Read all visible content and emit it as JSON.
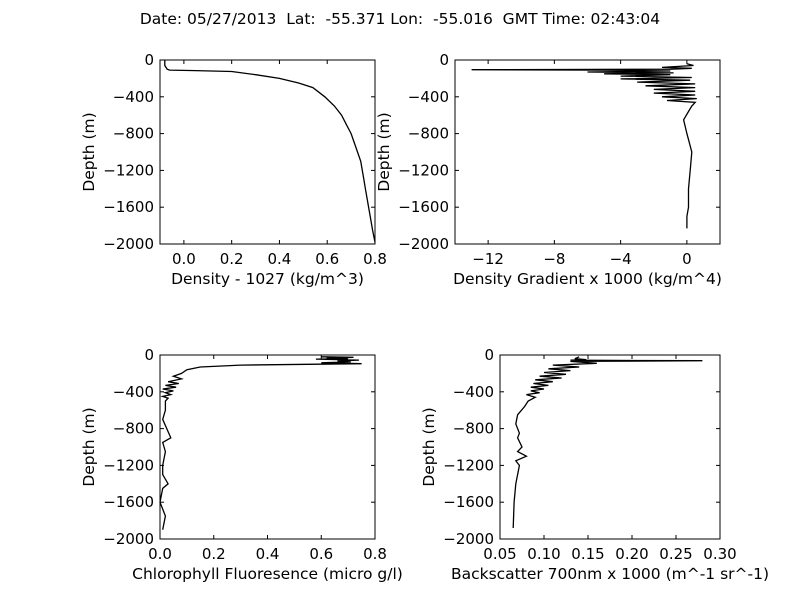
{
  "suptitle": "Date: 05/27/2013  Lat:  -55.371 Lon:  -55.016  GMT Time: 02:43:04",
  "chart_data": [
    {
      "type": "line",
      "xlabel": "Density - 1027 (kg/m^3)",
      "ylabel": "Depth (m)",
      "xlim": [
        -0.1,
        0.8
      ],
      "ylim": [
        -2000,
        0
      ],
      "xticks": [
        0.0,
        0.2,
        0.4,
        0.6,
        0.8
      ],
      "xtick_labels": [
        "0.0",
        "0.2",
        "0.4",
        "0.6",
        "0.8"
      ],
      "yticks": [
        0,
        -400,
        -800,
        -1200,
        -1600,
        -2000
      ],
      "ytick_labels": [
        "0",
        "−400",
        "−800",
        "−1200",
        "−1600",
        "−2000"
      ],
      "grid": false,
      "series": [
        {
          "x": [
            -0.08,
            -0.08,
            -0.07,
            -0.06,
            0.05,
            0.2,
            0.3,
            0.4,
            0.48,
            0.54,
            0.59,
            0.63,
            0.66,
            0.68,
            0.7,
            0.72,
            0.74,
            0.75,
            0.76,
            0.77,
            0.78,
            0.79,
            0.8
          ],
          "y": [
            0,
            -60,
            -100,
            -110,
            -115,
            -125,
            -160,
            -200,
            -250,
            -300,
            -400,
            -500,
            -600,
            -700,
            -800,
            -950,
            -1100,
            -1250,
            -1400,
            -1550,
            -1700,
            -1850,
            -1980
          ]
        }
      ]
    },
    {
      "type": "line",
      "xlabel": "Density Gradient x 1000 (kg/m^4)",
      "ylabel": "Depth (m)",
      "xlim": [
        -14,
        2
      ],
      "ylim": [
        -2000,
        0
      ],
      "xticks": [
        -12,
        -8,
        -4,
        0
      ],
      "xtick_labels": [
        "−12",
        "−8",
        "−4",
        "0"
      ],
      "yticks": [
        0,
        -400,
        -800,
        -1200,
        -1600,
        -2000
      ],
      "ytick_labels": [
        "0",
        "−400",
        "−800",
        "−1200",
        "−1600",
        "−2000"
      ],
      "grid": false,
      "series": [
        {
          "x": [
            0,
            0.4,
            -1.5,
            0.3,
            -1,
            -13,
            -5,
            -1,
            -6,
            -0.8,
            -5,
            -1,
            -4,
            0.3,
            -4,
            0.2,
            -3,
            0.5,
            -2.5,
            0.5,
            -2,
            0.5,
            -2,
            0.5,
            -1.5,
            0.6,
            -1.2,
            0.5,
            0.3,
            0.1,
            -0.2,
            0.0,
            0.3,
            0.2,
            0.1,
            0.1,
            0.0,
            0.0
          ],
          "y": [
            -40,
            -60,
            -80,
            -90,
            -100,
            -105,
            -110,
            -120,
            -130,
            -140,
            -150,
            -160,
            -175,
            -190,
            -205,
            -220,
            -240,
            -260,
            -280,
            -300,
            -320,
            -340,
            -360,
            -380,
            -400,
            -420,
            -440,
            -460,
            -500,
            -560,
            -650,
            -800,
            -1000,
            -1200,
            -1400,
            -1600,
            -1700,
            -1830
          ]
        }
      ]
    },
    {
      "type": "line",
      "xlabel": "Chlorophyll Fluoresence (micro g/l)",
      "ylabel": "Depth (m)",
      "xlim": [
        0.0,
        0.8
      ],
      "ylim": [
        -2000,
        0
      ],
      "xticks": [
        0.0,
        0.2,
        0.4,
        0.6,
        0.8
      ],
      "xtick_labels": [
        "0.0",
        "0.2",
        "0.4",
        "0.6",
        "0.8"
      ],
      "yticks": [
        0,
        -400,
        -800,
        -1200,
        -1600,
        -2000
      ],
      "ytick_labels": [
        "0",
        "−400",
        "−800",
        "−1200",
        "−1600",
        "−2000"
      ],
      "grid": false,
      "series": [
        {
          "x": [
            0.6,
            0.72,
            0.62,
            0.7,
            0.58,
            0.74,
            0.66,
            0.71,
            0.6,
            0.75,
            0.3,
            0.15,
            0.1,
            0.08,
            0.05,
            0.08,
            0.03,
            0.07,
            0.02,
            0.06,
            0.01,
            0.05,
            0.02,
            0.04,
            0.01,
            0.03,
            0.02,
            0.02,
            0.01,
            0.04,
            0.01,
            0.02,
            0.01,
            0.01,
            0.03,
            0.01,
            0.0,
            0.02,
            0.01
          ],
          "y": [
            -20,
            -25,
            -35,
            -40,
            -45,
            -55,
            -65,
            -75,
            -85,
            -95,
            -110,
            -130,
            -160,
            -200,
            -230,
            -260,
            -290,
            -310,
            -330,
            -350,
            -370,
            -390,
            -410,
            -430,
            -450,
            -470,
            -500,
            -600,
            -700,
            -900,
            -950,
            -1050,
            -1200,
            -1300,
            -1400,
            -1450,
            -1600,
            -1750,
            -1900
          ]
        }
      ]
    },
    {
      "type": "line",
      "xlabel": "Backscatter 700nm x 1000 (m^-1 sr^-1)",
      "ylabel": "Depth (m)",
      "xlim": [
        0.05,
        0.3
      ],
      "ylim": [
        -2000,
        0
      ],
      "xticks": [
        0.05,
        0.1,
        0.15,
        0.2,
        0.25,
        0.3
      ],
      "xtick_labels": [
        "0.05",
        "0.10",
        "0.15",
        "0.20",
        "0.25",
        "0.30"
      ],
      "yticks": [
        0,
        -400,
        -800,
        -1200,
        -1600,
        -2000
      ],
      "ytick_labels": [
        "0",
        "−400",
        "−800",
        "−1200",
        "−1600",
        "−2000"
      ],
      "grid": false,
      "series": [
        {
          "x": [
            0.14,
            0.135,
            0.148,
            0.13,
            0.15,
            0.28,
            0.13,
            0.16,
            0.11,
            0.14,
            0.105,
            0.13,
            0.1,
            0.125,
            0.095,
            0.12,
            0.09,
            0.11,
            0.088,
            0.105,
            0.085,
            0.1,
            0.085,
            0.095,
            0.08,
            0.09,
            0.082,
            0.078,
            0.07,
            0.068,
            0.072,
            0.07,
            0.075,
            0.07,
            0.08,
            0.068,
            0.072,
            0.068,
            0.066,
            0.065
          ],
          "y": [
            -20,
            -40,
            -50,
            -55,
            -58,
            -62,
            -70,
            -90,
            -110,
            -130,
            -150,
            -170,
            -190,
            -210,
            -230,
            -250,
            -270,
            -290,
            -310,
            -330,
            -350,
            -370,
            -390,
            -410,
            -430,
            -460,
            -500,
            -560,
            -650,
            -750,
            -850,
            -900,
            -1000,
            -1050,
            -1100,
            -1150,
            -1200,
            -1400,
            -1600,
            -1880
          ]
        }
      ]
    }
  ]
}
